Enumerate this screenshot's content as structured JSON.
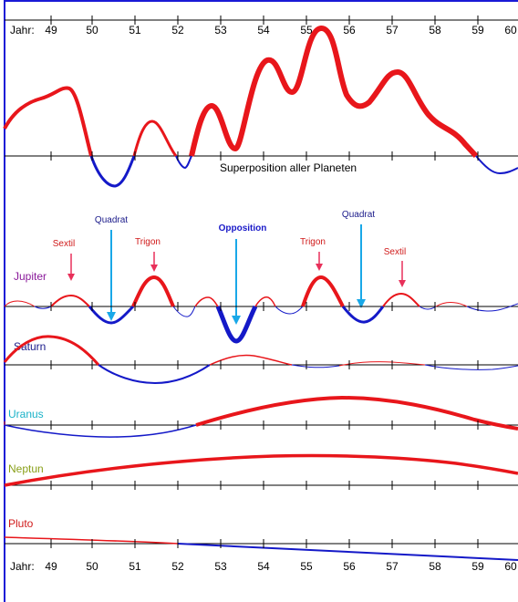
{
  "colors": {
    "positive": "#e8161b",
    "negative": "#1419c8",
    "axis": "#000000",
    "border": "#1a1ad6",
    "arrow_cyan": "#19a8e8",
    "arrow_pink": "#e8305a",
    "label_purple": "#8a1a9a",
    "label_navy": "#1a1a8a",
    "label_cyan": "#1ab2c8",
    "label_olive": "#8aa01a",
    "label_red": "#d01a1a",
    "label_blue": "#1919c8"
  },
  "top_axis": {
    "prefix": "Jahr:",
    "years": [
      "49",
      "50",
      "51",
      "52",
      "53",
      "54",
      "55",
      "56",
      "57",
      "58",
      "59",
      "60"
    ]
  },
  "bottom_axis": {
    "prefix": "Jahr:",
    "years": [
      "49",
      "50",
      "51",
      "52",
      "53",
      "54",
      "55",
      "56",
      "57",
      "58",
      "59",
      "60"
    ]
  },
  "superposition_label": "Superposition aller Planeten",
  "planets": [
    {
      "name": "Jupiter",
      "color_key": "label_purple"
    },
    {
      "name": "Saturn",
      "color_key": "label_navy"
    },
    {
      "name": "Uranus",
      "color_key": "label_cyan"
    },
    {
      "name": "Neptun",
      "color_key": "label_olive"
    },
    {
      "name": "Pluto",
      "color_key": "label_red"
    }
  ],
  "aspects": [
    {
      "label": "Sextil",
      "color_key": "arrow_pink"
    },
    {
      "label": "Quadrat",
      "color_key": "arrow_cyan"
    },
    {
      "label": "Trigon",
      "color_key": "arrow_pink"
    },
    {
      "label": "Opposition",
      "color_key": "label_blue"
    },
    {
      "label": "Trigon",
      "color_key": "arrow_pink"
    },
    {
      "label": "Quadrat",
      "color_key": "arrow_cyan"
    },
    {
      "label": "Sextil",
      "color_key": "arrow_pink"
    }
  ]
}
